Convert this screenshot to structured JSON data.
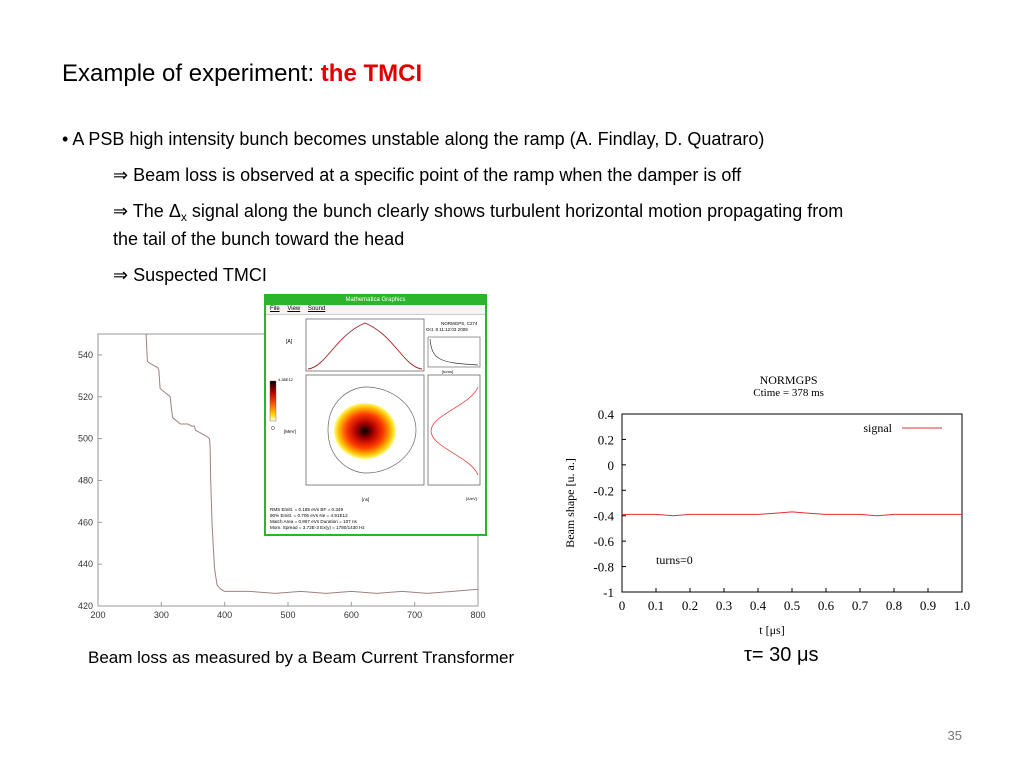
{
  "title": {
    "prefix": "Example of experiment: ",
    "accent": "the TMCI"
  },
  "bullets": {
    "b1": "A PSB high intensity bunch becomes unstable along the ramp (A. Findlay, D. Quatraro)",
    "b2": "Beam loss is observed at a specific point of the ramp when the damper is off",
    "b3_pre": "The ",
    "b3_delta": "Δ",
    "b3_sub": "x",
    "b3_post": " signal along the bunch clearly shows turbulent horizontal motion propagating from",
    "b3_cont": "the tail of the bunch toward the head",
    "b4": "Suspected TMCI",
    "arrow": "⇒",
    "dot": "•"
  },
  "captions": {
    "left": "Beam loss as measured by a Beam Current Transformer",
    "right": "τ= 30 μs"
  },
  "page_number": "35",
  "sim_window": {
    "title_bar": "Mathematica Graphics",
    "menu": [
      "File",
      "View",
      "Sound"
    ],
    "header_lines": [
      "NORMGPS, C274",
      "Oct. 8 11:12:03 2009"
    ],
    "stats_lines": [
      "RMS Emitt. = 0.185 eVs   BF = 0.349",
      "90% Emitt. = 0.705 eVs   Ne = 4.91E12",
      "Match Area = 0.867 eVs   Duration = 107 ns",
      "Mom. Spread = 3.72E-3    Ex(y) = 1780/1430 Hz"
    ],
    "colorbar_max": "4.38E12",
    "axis_units": [
      "[A]",
      "[MeV]",
      "[ns]",
      "[A/eV]",
      "[turns]"
    ]
  },
  "chart_data": [
    {
      "type": "line",
      "title": "",
      "xlabel": "",
      "ylabel": "",
      "xlim": [
        200,
        800
      ],
      "ylim": [
        420,
        550
      ],
      "xticks": [
        200,
        300,
        400,
        500,
        600,
        700,
        800
      ],
      "yticks": [
        420,
        440,
        460,
        480,
        500,
        520,
        540
      ],
      "grid": false,
      "series": [
        {
          "name": "",
          "color": "#a08080",
          "x": [
            276,
            278,
            282,
            288,
            294,
            296,
            298,
            302,
            306,
            310,
            314,
            316,
            318,
            322,
            326,
            330,
            336,
            342,
            348,
            352,
            354,
            360,
            366,
            372,
            376,
            377,
            378,
            380,
            384,
            388,
            394,
            400,
            440,
            480,
            520,
            560,
            600,
            640,
            680,
            720,
            760,
            800
          ],
          "y": [
            550,
            537,
            536,
            535,
            534,
            533,
            524,
            523,
            522,
            521,
            520,
            514,
            510,
            509,
            508,
            507,
            507,
            507,
            506,
            506,
            504,
            503,
            502,
            501,
            500,
            496,
            480,
            460,
            438,
            430,
            428,
            427,
            427,
            426,
            427,
            426,
            427,
            426,
            427,
            426,
            427,
            428
          ]
        }
      ]
    },
    {
      "type": "line",
      "title": "NORMGPS",
      "subtitle": "Ctime = 378 ms",
      "xlabel": "t [μs]",
      "ylabel": "Beam shape [u. a.]",
      "xlim": [
        0,
        1.0
      ],
      "ylim": [
        -1,
        0.4
      ],
      "xticks": [
        "0",
        "0.1",
        "0.2",
        "0.3",
        "0.4",
        "0.5",
        "0.6",
        "0.7",
        "0.8",
        "0.9",
        "1.0"
      ],
      "yticks": [
        "-1",
        "-0.8",
        "-0.6",
        "-0.4",
        "-0.2",
        "0",
        "0.2",
        "0.4"
      ],
      "annotation": "turns=0",
      "legend": "top-right",
      "grid": false,
      "series": [
        {
          "name": "signal",
          "color": "#e03030",
          "x": [
            0,
            0.05,
            0.1,
            0.15,
            0.2,
            0.25,
            0.3,
            0.35,
            0.4,
            0.45,
            0.5,
            0.55,
            0.6,
            0.65,
            0.7,
            0.75,
            0.8,
            0.85,
            0.9,
            0.95,
            1.0
          ],
          "y": [
            -0.39,
            -0.39,
            -0.39,
            -0.4,
            -0.39,
            -0.39,
            -0.39,
            -0.39,
            -0.39,
            -0.38,
            -0.37,
            -0.38,
            -0.39,
            -0.39,
            -0.39,
            -0.4,
            -0.39,
            -0.39,
            -0.39,
            -0.39,
            -0.39
          ]
        }
      ]
    }
  ]
}
